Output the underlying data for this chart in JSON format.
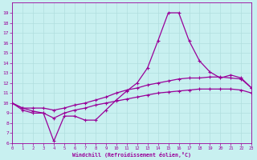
{
  "bg_color": "#c8f0f0",
  "grid_color": "#b0dede",
  "line_color": "#990099",
  "xlabel": "Windchill (Refroidissement éolien,°C)",
  "ylim": [
    6,
    20
  ],
  "xlim": [
    0,
    23
  ],
  "yticks": [
    6,
    7,
    8,
    9,
    10,
    11,
    12,
    13,
    14,
    15,
    16,
    17,
    18,
    19
  ],
  "xticks": [
    0,
    1,
    2,
    3,
    4,
    5,
    6,
    7,
    8,
    9,
    10,
    11,
    12,
    13,
    14,
    15,
    16,
    17,
    18,
    19,
    20,
    21,
    22,
    23
  ],
  "series": [
    {
      "y": [
        10.0,
        9.5,
        9.2,
        9.0,
        6.2,
        8.7,
        8.7,
        8.3,
        8.3,
        9.3,
        10.3,
        11.2,
        12.0,
        13.5,
        16.2,
        19.0,
        19.0,
        16.2,
        14.2,
        13.1,
        12.5,
        12.8,
        12.5,
        11.5
      ],
      "linestyle": "-",
      "linewidth": 0.9,
      "marker": "+"
    },
    {
      "y": [
        10.0,
        9.5,
        9.5,
        9.5,
        9.3,
        9.5,
        9.8,
        10.0,
        10.3,
        10.6,
        11.0,
        11.3,
        11.5,
        11.8,
        12.0,
        12.2,
        12.4,
        12.5,
        12.5,
        12.6,
        12.6,
        12.5,
        12.4,
        11.5
      ],
      "linestyle": "-",
      "linewidth": 0.9,
      "marker": "+"
    },
    {
      "y": [
        10.0,
        9.3,
        9.0,
        9.0,
        8.5,
        9.0,
        9.3,
        9.5,
        9.8,
        10.0,
        10.2,
        10.4,
        10.6,
        10.8,
        11.0,
        11.1,
        11.2,
        11.3,
        11.4,
        11.4,
        11.4,
        11.4,
        11.3,
        11.0
      ],
      "linestyle": "-",
      "linewidth": 0.9,
      "marker": "+"
    }
  ]
}
